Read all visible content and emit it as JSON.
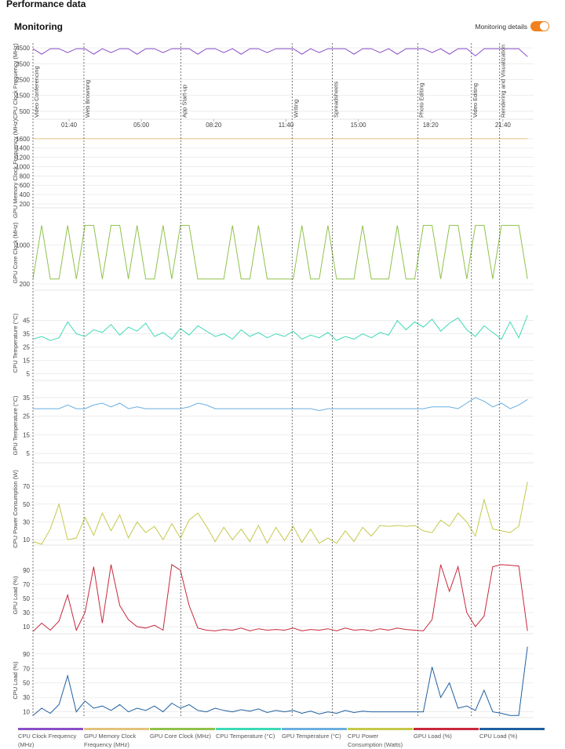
{
  "header": {
    "title": "Performance data",
    "section": "Monitoring",
    "toggle_label": "Monitoring details"
  },
  "chart_data": {
    "type": "line",
    "x": [
      0,
      24,
      48,
      72,
      96,
      120,
      144,
      168,
      192,
      216,
      240,
      264,
      288,
      312,
      336,
      360,
      384,
      408,
      432,
      456,
      480,
      504,
      528,
      552,
      576,
      600,
      624,
      648,
      672,
      696,
      720,
      744,
      768,
      792,
      816,
      840,
      864,
      888,
      912,
      936,
      960,
      984,
      1008,
      1032,
      1056,
      1080,
      1104,
      1128,
      1152,
      1176,
      1200,
      1224,
      1248,
      1272,
      1296,
      1320,
      1344,
      1368
    ],
    "xlim": [
      0,
      1385
    ],
    "xticks": [
      {
        "value": 100,
        "label": "01:40"
      },
      {
        "value": 300,
        "label": "05:00"
      },
      {
        "value": 500,
        "label": "08:20"
      },
      {
        "value": 700,
        "label": "11:40"
      },
      {
        "value": 900,
        "label": "15:00"
      },
      {
        "value": 1100,
        "label": "18:20"
      },
      {
        "value": 1300,
        "label": "21:40"
      }
    ],
    "annotations": [
      {
        "x": 0,
        "label": "Video Conferencing"
      },
      {
        "x": 141,
        "label": "Web Browsing"
      },
      {
        "x": 409,
        "label": "App Start-up"
      },
      {
        "x": 717,
        "label": "Writing"
      },
      {
        "x": 828,
        "label": "Spreadsheets"
      },
      {
        "x": 1065,
        "label": "Photo Editing"
      },
      {
        "x": 1213,
        "label": "Video Editing"
      },
      {
        "x": 1291,
        "label": "Rendering and Visualization"
      }
    ],
    "grid": true,
    "series": [
      {
        "name": "CPU Clock Frequency (MHz)",
        "ylabel": "CPU Clock Frequency (MHz)",
        "color": "#8a4fc7",
        "ylim": [
          0,
          4800
        ],
        "yticks": [
          500,
          1500,
          2500,
          3500,
          4500
        ],
        "values": [
          4450,
          4100,
          4450,
          4450,
          4200,
          4450,
          4450,
          4100,
          4450,
          4200,
          4450,
          4450,
          4100,
          4450,
          4450,
          4200,
          4450,
          4450,
          4450,
          4100,
          4450,
          4450,
          4200,
          4450,
          4100,
          4450,
          4450,
          4200,
          4450,
          4450,
          4450,
          4100,
          4450,
          4200,
          4450,
          4450,
          4450,
          4100,
          4450,
          4450,
          4200,
          4450,
          4100,
          4450,
          4450,
          4450,
          4200,
          4450,
          4100,
          4450,
          4450,
          4000,
          4450,
          4450,
          4450,
          4450,
          4450,
          3950
        ]
      },
      {
        "name": "GPU Memory Clock Frequency (MHz)",
        "ylabel": "GPU Memory Clock Frequency (MHz)",
        "color": "#e3c27e",
        "ylim": [
          115,
          1800
        ],
        "yticks": [
          200,
          400,
          600,
          800,
          1000,
          1200,
          1400,
          1600
        ],
        "values": [
          1600,
          1600,
          1600,
          1600,
          1600,
          1600,
          1600,
          1600,
          1600,
          1600,
          1600,
          1600,
          1600,
          1600,
          1600,
          1600,
          1600,
          1600,
          1600,
          1600,
          1600,
          1600,
          1600,
          1600,
          1600,
          1600,
          1600,
          1600,
          1600,
          1600,
          1600,
          1600,
          1600,
          1600,
          1600,
          1600,
          1600,
          1600,
          1600,
          1600,
          1600,
          1600,
          1600,
          1600,
          1600,
          1600,
          1600,
          1600,
          1600,
          1600,
          1600,
          1600,
          1600,
          1600,
          1600,
          1600,
          1600,
          1600
        ]
      },
      {
        "name": "GPU Core Clock (MHz)",
        "ylabel": "GPU Core Clock (MHz)",
        "color": "#8fc24a",
        "ylim": [
          70,
          1600
        ],
        "yticks": [
          200,
          1000
        ],
        "values": [
          300,
          1400,
          300,
          300,
          1400,
          300,
          1400,
          1400,
          300,
          1400,
          1400,
          300,
          1400,
          300,
          300,
          1400,
          300,
          1400,
          1400,
          300,
          300,
          300,
          300,
          1400,
          300,
          300,
          1400,
          300,
          300,
          300,
          300,
          1400,
          300,
          300,
          1400,
          300,
          300,
          300,
          1400,
          300,
          300,
          300,
          1400,
          300,
          300,
          1400,
          1400,
          300,
          1400,
          1400,
          300,
          1400,
          1400,
          300,
          1400,
          1400,
          1400,
          300
        ]
      },
      {
        "name": "CPU Temperature (°C)",
        "ylabel": "CPU Temperature (°C)",
        "color": "#3fd9b6",
        "ylim": [
          0,
          56
        ],
        "yticks": [
          5,
          15,
          25,
          35,
          45
        ],
        "values": [
          31,
          33,
          30,
          32,
          44,
          35,
          33,
          38,
          36,
          42,
          34,
          40,
          37,
          43,
          33,
          36,
          31,
          39,
          34,
          41,
          37,
          33,
          35,
          31,
          38,
          33,
          36,
          32,
          35,
          33,
          37,
          31,
          34,
          32,
          36,
          30,
          33,
          31,
          35,
          32,
          36,
          34,
          45,
          38,
          44,
          40,
          46,
          37,
          43,
          47,
          38,
          33,
          41,
          36,
          31,
          44,
          32,
          49
        ]
      },
      {
        "name": "GPU Temperature (°C)",
        "ylabel": "GPU Temperature (°C)",
        "color": "#6aaee0",
        "ylim": [
          0,
          40
        ],
        "yticks": [
          5,
          15,
          25,
          35
        ],
        "values": [
          29,
          29,
          29,
          29,
          31,
          29,
          29,
          31,
          32,
          30,
          32,
          29,
          30,
          29,
          29,
          29,
          29,
          29,
          30,
          32,
          31,
          29,
          29,
          29,
          29,
          29,
          29,
          29,
          29,
          29,
          29,
          29,
          29,
          28,
          29,
          29,
          29,
          29,
          29,
          29,
          29,
          29,
          29,
          29,
          29,
          29,
          30,
          30,
          30,
          29,
          32,
          35,
          33,
          30,
          32,
          29,
          31,
          34
        ]
      },
      {
        "name": "CPU Power Consumption (Watts)",
        "ylabel": "CPU Power Consumption (W)",
        "color": "#c5c94a",
        "ylim": [
          4,
          85
        ],
        "yticks": [
          10,
          30,
          50,
          70
        ],
        "values": [
          8,
          5,
          22,
          50,
          10,
          12,
          35,
          15,
          40,
          20,
          38,
          12,
          30,
          18,
          25,
          10,
          28,
          12,
          32,
          40,
          25,
          8,
          24,
          10,
          22,
          8,
          26,
          6,
          24,
          9,
          25,
          7,
          22,
          6,
          12,
          6,
          20,
          8,
          24,
          14,
          26,
          25,
          26,
          25,
          26,
          20,
          18,
          32,
          25,
          40,
          30,
          14,
          55,
          22,
          20,
          18,
          25,
          75
        ]
      },
      {
        "name": "GPU Load (%)",
        "ylabel": "GPU Load (%)",
        "color": "#c8283c",
        "ylim": [
          0,
          109
        ],
        "yticks": [
          10,
          30,
          50,
          70,
          90
        ],
        "values": [
          3,
          15,
          5,
          18,
          55,
          5,
          30,
          95,
          15,
          98,
          40,
          20,
          10,
          8,
          12,
          5,
          98,
          90,
          40,
          8,
          5,
          4,
          6,
          5,
          8,
          4,
          7,
          5,
          6,
          5,
          8,
          4,
          6,
          5,
          7,
          4,
          8,
          5,
          6,
          4,
          7,
          5,
          8,
          6,
          5,
          4,
          20,
          98,
          60,
          95,
          30,
          10,
          25,
          95,
          98,
          97,
          96,
          4
        ]
      },
      {
        "name": "CPU Load (%)",
        "ylabel": "CPU Load (%)",
        "color": "#1f5fa0",
        "ylim": [
          2,
          105
        ],
        "yticks": [
          10,
          30,
          50,
          70,
          90
        ],
        "values": [
          5,
          15,
          8,
          20,
          60,
          10,
          25,
          15,
          18,
          12,
          20,
          10,
          15,
          12,
          18,
          10,
          22,
          15,
          20,
          12,
          10,
          15,
          12,
          10,
          13,
          11,
          14,
          9,
          12,
          10,
          12,
          8,
          11,
          7,
          10,
          8,
          12,
          9,
          11,
          10,
          10,
          10,
          10,
          10,
          10,
          10,
          72,
          30,
          50,
          15,
          18,
          12,
          40,
          10,
          8,
          5,
          5,
          100
        ]
      }
    ]
  }
}
